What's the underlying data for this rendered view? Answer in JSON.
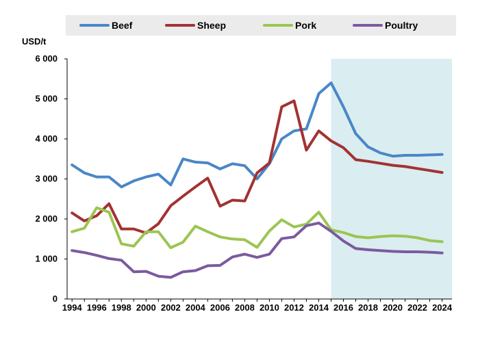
{
  "chart_data": {
    "type": "line",
    "ylabel": "USD/t",
    "xlabel": "",
    "title": "",
    "ylim": [
      0,
      6000
    ],
    "yticks": [
      0,
      1000,
      2000,
      3000,
      4000,
      5000,
      6000
    ],
    "ytick_labels": [
      "0",
      "1 000",
      "2 000",
      "3 000",
      "4 000",
      "5 000",
      "6 000"
    ],
    "x": [
      1994,
      1995,
      1996,
      1997,
      1998,
      1999,
      2000,
      2001,
      2002,
      2003,
      2004,
      2005,
      2006,
      2007,
      2008,
      2009,
      2010,
      2011,
      2012,
      2013,
      2014,
      2015,
      2016,
      2017,
      2018,
      2019,
      2020,
      2021,
      2022,
      2023,
      2024
    ],
    "xticks": [
      1994,
      1996,
      1998,
      2000,
      2002,
      2004,
      2006,
      2008,
      2010,
      2012,
      2014,
      2016,
      2018,
      2020,
      2022,
      2024
    ],
    "xlim": [
      1993.6,
      2024.8
    ],
    "projection_start": 2015,
    "projection_color": "#daedf0",
    "grid": false,
    "legend_position": "top",
    "series": [
      {
        "name": "Beef",
        "color": "#4a86c8",
        "values": [
          3350,
          3150,
          3050,
          3050,
          2800,
          2950,
          3050,
          3120,
          2850,
          3500,
          3420,
          3400,
          3250,
          3380,
          3330,
          3000,
          3380,
          4000,
          4200,
          4250,
          5130,
          5400,
          4800,
          4130,
          3800,
          3650,
          3570,
          3590,
          3590,
          3600,
          3610
        ]
      },
      {
        "name": "Sheep",
        "color": "#a33232",
        "values": [
          2150,
          1950,
          2080,
          2380,
          1750,
          1750,
          1650,
          1880,
          2330,
          2570,
          2800,
          3020,
          2320,
          2470,
          2450,
          3150,
          3400,
          4800,
          4950,
          3720,
          4200,
          3950,
          3780,
          3480,
          3440,
          3390,
          3340,
          3310,
          3260,
          3210,
          3160
        ]
      },
      {
        "name": "Pork",
        "color": "#9bc552",
        "values": [
          1680,
          1770,
          2280,
          2170,
          1380,
          1320,
          1680,
          1680,
          1280,
          1420,
          1820,
          1680,
          1550,
          1500,
          1480,
          1290,
          1700,
          1980,
          1800,
          1870,
          2170,
          1730,
          1660,
          1560,
          1530,
          1560,
          1580,
          1570,
          1530,
          1460,
          1430
        ]
      },
      {
        "name": "Poultry",
        "color": "#7b5aa0",
        "values": [
          1210,
          1160,
          1090,
          1010,
          970,
          680,
          690,
          570,
          540,
          680,
          710,
          830,
          840,
          1050,
          1120,
          1040,
          1120,
          1510,
          1550,
          1830,
          1900,
          1690,
          1450,
          1260,
          1230,
          1210,
          1190,
          1180,
          1180,
          1170,
          1150
        ]
      }
    ]
  }
}
